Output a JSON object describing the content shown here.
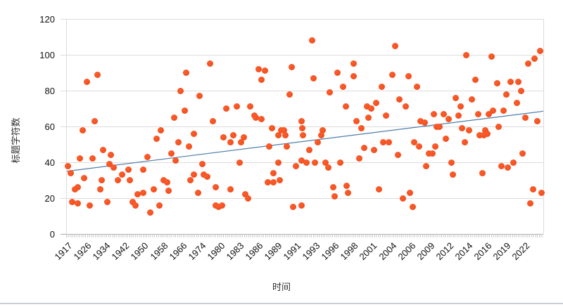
{
  "chart_data": {
    "type": "scatter",
    "title": "",
    "xlabel": "时间",
    "ylabel": "标题字符数",
    "ylim": [
      0,
      120
    ],
    "y_ticks": [
      0,
      20,
      40,
      60,
      80,
      100,
      120
    ],
    "x_axis_type": "category-years-evenly-spaced-labels",
    "x_tick_labels": [
      "1917",
      "1926",
      "1934",
      "1942",
      "1950",
      "1958",
      "1966",
      "1974",
      "1980",
      "1983",
      "1986",
      "1989",
      "1991",
      "1993",
      "1996",
      "1998",
      "2001",
      "2004",
      "2006",
      "2009",
      "2012",
      "2014",
      "2016",
      "2019",
      "2022"
    ],
    "grid": "horizontal",
    "legend": "none",
    "point_color": "#f7521f",
    "trendline": {
      "color": "#4e7ca8",
      "start_value": 35,
      "end_value": 68.5
    },
    "points_format": "[x_percent_across_axis, y_value]",
    "points": [
      [
        0.4,
        38
      ],
      [
        1.0,
        34
      ],
      [
        1.3,
        18
      ],
      [
        1.8,
        25
      ],
      [
        2.4,
        26
      ],
      [
        2.4,
        17
      ],
      [
        2.9,
        42
      ],
      [
        3.4,
        58
      ],
      [
        3.8,
        31
      ],
      [
        4.4,
        85
      ],
      [
        5.0,
        16
      ],
      [
        5.6,
        42
      ],
      [
        5.9,
        63
      ],
      [
        6.5,
        89
      ],
      [
        7.1,
        25
      ],
      [
        7.4,
        30
      ],
      [
        7.8,
        47
      ],
      [
        8.6,
        18
      ],
      [
        9.1,
        39
      ],
      [
        9.4,
        44
      ],
      [
        10.0,
        37
      ],
      [
        10.9,
        30
      ],
      [
        11.7,
        33
      ],
      [
        13.0,
        36
      ],
      [
        13.3,
        30
      ],
      [
        13.9,
        18
      ],
      [
        14.6,
        16
      ],
      [
        14.9,
        22
      ],
      [
        16.1,
        36
      ],
      [
        16.1,
        23
      ],
      [
        17.0,
        43
      ],
      [
        17.6,
        12
      ],
      [
        18.3,
        25
      ],
      [
        19.0,
        53
      ],
      [
        19.5,
        16
      ],
      [
        19.9,
        58
      ],
      [
        20.5,
        30
      ],
      [
        21.1,
        29
      ],
      [
        21.5,
        24
      ],
      [
        22.0,
        45
      ],
      [
        22.6,
        65
      ],
      [
        22.9,
        41
      ],
      [
        23.5,
        51
      ],
      [
        24.0,
        80
      ],
      [
        24.8,
        69
      ],
      [
        25.1,
        90
      ],
      [
        25.7,
        49
      ],
      [
        26.0,
        30
      ],
      [
        26.7,
        33
      ],
      [
        26.8,
        56
      ],
      [
        27.7,
        23
      ],
      [
        28.0,
        77
      ],
      [
        28.5,
        39
      ],
      [
        28.9,
        33
      ],
      [
        29.5,
        32
      ],
      [
        30.1,
        95
      ],
      [
        30.7,
        63
      ],
      [
        31.3,
        16
      ],
      [
        31.9,
        15
      ],
      [
        31.4,
        26
      ],
      [
        32.7,
        16
      ],
      [
        33.0,
        54
      ],
      [
        33.6,
        70
      ],
      [
        34.4,
        51
      ],
      [
        34.5,
        25
      ],
      [
        35.0,
        55
      ],
      [
        35.8,
        71
      ],
      [
        36.3,
        40
      ],
      [
        36.6,
        51
      ],
      [
        37.3,
        54
      ],
      [
        37.5,
        22
      ],
      [
        38.1,
        20
      ],
      [
        38.6,
        71
      ],
      [
        39.4,
        66
      ],
      [
        39.8,
        65
      ],
      [
        40.3,
        92
      ],
      [
        40.9,
        64
      ],
      [
        41.0,
        86
      ],
      [
        41.7,
        91
      ],
      [
        42.2,
        29
      ],
      [
        42.6,
        49
      ],
      [
        43.2,
        59
      ],
      [
        43.4,
        29
      ],
      [
        43.5,
        34
      ],
      [
        44.4,
        40
      ],
      [
        44.5,
        55
      ],
      [
        44.8,
        30
      ],
      [
        45.1,
        58
      ],
      [
        45.6,
        58
      ],
      [
        46.0,
        55
      ],
      [
        46.3,
        49
      ],
      [
        46.9,
        78
      ],
      [
        47.3,
        93
      ],
      [
        47.5,
        15
      ],
      [
        48.2,
        38
      ],
      [
        49.3,
        63
      ],
      [
        49.5,
        59
      ],
      [
        49.6,
        55
      ],
      [
        49.4,
        41
      ],
      [
        49.4,
        16
      ],
      [
        50.4,
        40
      ],
      [
        50.9,
        47
      ],
      [
        51.5,
        108
      ],
      [
        51.9,
        87
      ],
      [
        52.2,
        40
      ],
      [
        52.8,
        51
      ],
      [
        53.4,
        55
      ],
      [
        53.8,
        58
      ],
      [
        54.3,
        40
      ],
      [
        54.9,
        37
      ],
      [
        55.3,
        79
      ],
      [
        55.9,
        26
      ],
      [
        56.3,
        21
      ],
      [
        56.8,
        90
      ],
      [
        57.4,
        40
      ],
      [
        58.0,
        82
      ],
      [
        58.6,
        71
      ],
      [
        58.8,
        27
      ],
      [
        59.1,
        23
      ],
      [
        60.2,
        95
      ],
      [
        60.3,
        88
      ],
      [
        60.9,
        63
      ],
      [
        61.4,
        42
      ],
      [
        61.9,
        59
      ],
      [
        62.4,
        48
      ],
      [
        63.0,
        71
      ],
      [
        63.4,
        65
      ],
      [
        64.0,
        70
      ],
      [
        64.6,
        47
      ],
      [
        64.9,
        73
      ],
      [
        65.5,
        25
      ],
      [
        66.2,
        82
      ],
      [
        66.5,
        51
      ],
      [
        67.0,
        66
      ],
      [
        67.6,
        51
      ],
      [
        68.4,
        89
      ],
      [
        69.0,
        105
      ],
      [
        69.6,
        44
      ],
      [
        69.9,
        75
      ],
      [
        70.6,
        20
      ],
      [
        71.2,
        71
      ],
      [
        71.7,
        88
      ],
      [
        72.0,
        23
      ],
      [
        72.6,
        15
      ],
      [
        72.9,
        51
      ],
      [
        73.5,
        82
      ],
      [
        74.0,
        49
      ],
      [
        74.3,
        63
      ],
      [
        75.1,
        62
      ],
      [
        75.5,
        38
      ],
      [
        76.1,
        45
      ],
      [
        76.8,
        45
      ],
      [
        77.0,
        67
      ],
      [
        77.4,
        49
      ],
      [
        77.6,
        60
      ],
      [
        78.3,
        60
      ],
      [
        79.2,
        67
      ],
      [
        79.6,
        53
      ],
      [
        80.2,
        64
      ],
      [
        80.7,
        40
      ],
      [
        81.1,
        33
      ],
      [
        81.6,
        76
      ],
      [
        82.2,
        66
      ],
      [
        82.6,
        71
      ],
      [
        82.9,
        59
      ],
      [
        83.5,
        51
      ],
      [
        83.9,
        100
      ],
      [
        84.5,
        58
      ],
      [
        85.1,
        75
      ],
      [
        85.7,
        86
      ],
      [
        86.4,
        67
      ],
      [
        86.7,
        55
      ],
      [
        87.2,
        34
      ],
      [
        87.5,
        55
      ],
      [
        87.9,
        58
      ],
      [
        88.3,
        56
      ],
      [
        88.6,
        67
      ],
      [
        89.1,
        99
      ],
      [
        89.5,
        69
      ],
      [
        90.3,
        84
      ],
      [
        90.6,
        60
      ],
      [
        91.2,
        38
      ],
      [
        91.6,
        69
      ],
      [
        92.3,
        78
      ],
      [
        92.6,
        37
      ],
      [
        93.2,
        85
      ],
      [
        93.8,
        40
      ],
      [
        94.4,
        73
      ],
      [
        94.7,
        85
      ],
      [
        95.3,
        80
      ],
      [
        95.7,
        45
      ],
      [
        96.2,
        65
      ],
      [
        96.9,
        95
      ],
      [
        97.3,
        17
      ],
      [
        97.8,
        25
      ],
      [
        98.2,
        98
      ],
      [
        98.8,
        63
      ],
      [
        99.4,
        102
      ],
      [
        99.6,
        23
      ]
    ]
  },
  "colors": {
    "background": "#ffffff",
    "gridline": "#dcdcdc",
    "axis_baseline": "#ababab",
    "tick": "#c9c9c9",
    "label_text": "#111111",
    "bottom_strip": "#c7ced6"
  }
}
